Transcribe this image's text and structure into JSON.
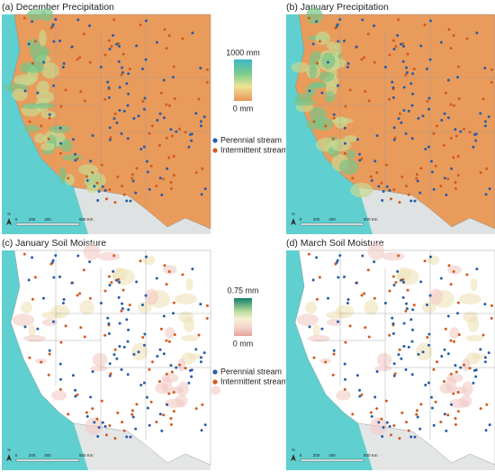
{
  "panels": [
    {
      "title": "(a) December Precipitation"
    },
    {
      "title": "(b) January Precipitation"
    },
    {
      "title": "(c) January Soil Moisture"
    },
    {
      "title": "(d) March Soil Moisture"
    }
  ],
  "colorbars": [
    {
      "max_label": "1000 mm",
      "min_label": "0 mm"
    },
    {
      "max_label": "0.75 mm",
      "min_label": "0 mm"
    }
  ],
  "legend": {
    "perennial": "Perennial stream",
    "intermittent": "Intermittent stream"
  },
  "scale_bar": [
    "0",
    "200",
    "400",
    "800 Km"
  ],
  "north": "N"
}
